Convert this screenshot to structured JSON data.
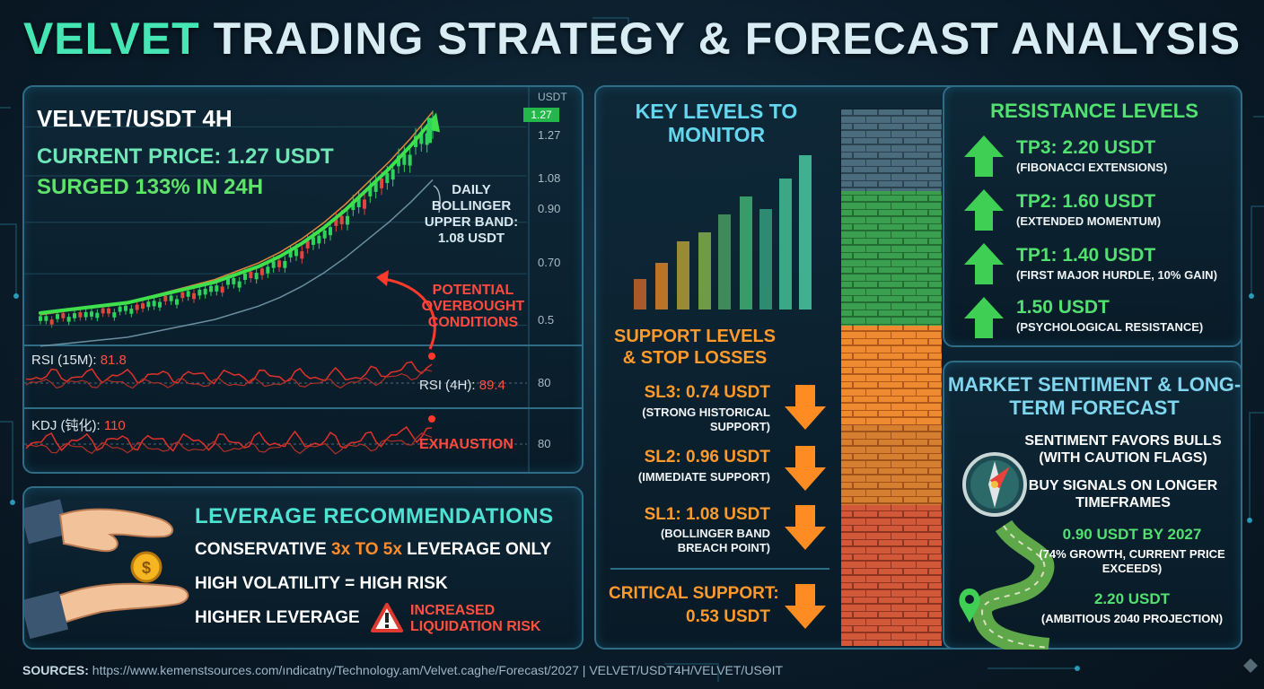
{
  "title": {
    "highlight": "VELVET",
    "rest": "TRADING STRATEGY & FORECAST ANALYSIS"
  },
  "chart": {
    "pair": "VELVET/USDT 4H",
    "current_price": "CURRENT PRICE: 1.27 USDT",
    "surge": "SURGED 133% IN 24H",
    "axis_title": "USDT",
    "price_tag": "1.27",
    "ticks": [
      "1.27",
      "1.08",
      "0.90",
      "0.70",
      "0.5"
    ],
    "bollinger_label": "DAILY BOLLINGER UPPER BAND: 1.08 USDT",
    "overbought_label": "POTENTIAL OVERBOUGHT CONDITIONS",
    "rsi15_label": "RSI (15M): ",
    "rsi15_value": "81.8",
    "rsi4h_label": "RSI (4H): ",
    "rsi4h_value": "89.4",
    "rsi_tick": "80",
    "kdj_label": "KDJ (钝化): ",
    "kdj_value": "110",
    "exhaustion": "EXHAUSTION",
    "kdj_tick": "80"
  },
  "chart_data": {
    "type": "line",
    "title": "VELVET/USDT 4H",
    "ylabel": "USDT",
    "y_ticks": [
      0.5,
      0.7,
      0.9,
      1.08,
      1.27
    ],
    "ylim": [
      0.45,
      1.32
    ],
    "current_price": 1.27,
    "bollinger_upper_daily": 1.08,
    "rsi_15m": 81.8,
    "rsi_4h": 89.4,
    "kdj": 110,
    "trend_points": [
      0.52,
      0.53,
      0.54,
      0.55,
      0.56,
      0.58,
      0.6,
      0.62,
      0.64,
      0.67,
      0.7,
      0.74,
      0.79,
      0.85,
      0.92,
      1.0,
      1.08,
      1.17,
      1.27
    ],
    "colors": {
      "up": "#2fd35c",
      "down": "#e0473c",
      "trend": "#3ee04c",
      "band": "#e0873a",
      "indicator": "#e0302a"
    }
  },
  "leverage": {
    "title": "LEVERAGE RECOMMENDATIONS",
    "line1_a": "CONSERVATIVE ",
    "line1_b": "3x TO 5x",
    "line1_c": " LEVERAGE ONLY",
    "line2": "HIGH VOLATILITY = HIGH RISK",
    "line3": "HIGHER LEVERAGE",
    "warning_a": "INCREASED",
    "warning_b": "LIQUIDATION RISK"
  },
  "levels": {
    "key_title": "KEY LEVELS TO MONITOR",
    "support_title": "SUPPORT LEVELS & STOP LOSSES",
    "supports": [
      {
        "name": "SL3: 0.74 USDT",
        "note": "(STRONG HISTORICAL SUPPORT)"
      },
      {
        "name": "SL2: 0.96 USDT",
        "note": "(IMMEDIATE SUPPORT)"
      },
      {
        "name": "SL1: 1.08 USDT",
        "note": "(BOLLINGER BAND BREACH POINT)"
      }
    ],
    "critical_a": "CRITICAL SUPPORT:",
    "critical_b": "0.53 USDT"
  },
  "resistance": {
    "title": "RESISTANCE LEVELS",
    "items": [
      {
        "name": "TP3: 2.20 USDT",
        "note": "(FIBONACCI EXTENSIONS)"
      },
      {
        "name": "TP2: 1.60 USDT",
        "note": "(EXTENDED MOMENTUM)"
      },
      {
        "name": "TP1: 1.40 USDT",
        "note": "(FIRST MAJOR HURDLE, 10% GAIN)"
      },
      {
        "name": "1.50 USDT",
        "note": "(PSYCHOLOGICAL RESISTANCE)"
      }
    ]
  },
  "sentiment": {
    "title": "MARKET SENTIMENT & LONG-TERM FORECAST",
    "line1": "SENTIMENT FAVORS BULLS (WITH CAUTION FLAGS)",
    "line2": "BUY SIGNALS ON LONGER TIMEFRAMES",
    "f1": "0.90 USDT BY 2027",
    "f1_note": "(74% GROWTH, CURRENT PRICE EXCEEDS)",
    "f2": "2.20 USDT",
    "f2_note": "(AMBITIOUS 2040 PROJECTION)"
  },
  "sources": {
    "label": "SOURCES:",
    "text": " https://www.kemenstsources.com/ındicatny/Technology.am/Velvet.caghe/Forecast/2027 | VELVET/USDT4H/VELVET/USϴIT"
  }
}
